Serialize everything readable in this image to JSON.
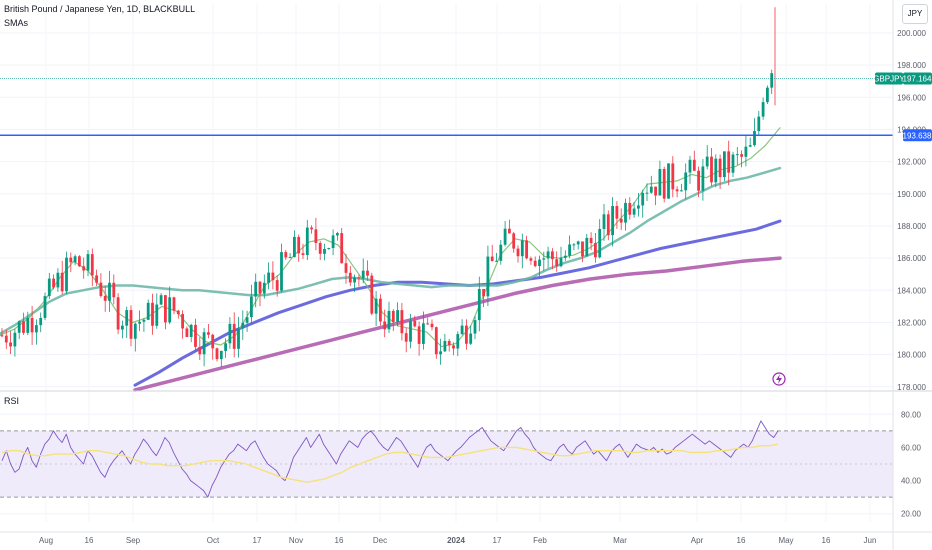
{
  "header": {
    "symbol_title": "British Pound / Japanese Yen, 1D, BLACKBULL",
    "indicator_main": "SMAs",
    "indicator_rsi": "RSI",
    "currency_unit": "JPY"
  },
  "price_tags": {
    "symbol": "GBPJPY",
    "last_price": "197.164",
    "hline_price": "193.638"
  },
  "colors": {
    "up": "#089981",
    "down": "#f23645",
    "sma_fast": "#7cbf6b",
    "sma_mid": "#6fb8a8",
    "sma_slow": "#5b5bdc",
    "sma_long": "#b15cae",
    "hline": "#2962ff",
    "last_tag": "#089981",
    "rsi": "#7e57c2",
    "rsi_ma": "#f5e27a",
    "rsi_band": "#f0ebfa",
    "lightning": "#9c27b0"
  },
  "chart_data": [
    {
      "type": "candlestick",
      "name": "GBPJPY daily",
      "y_ticks": [
        "178.000",
        "180.000",
        "182.000",
        "184.000",
        "186.000",
        "188.000",
        "190.000",
        "192.000",
        "194.000",
        "196.000",
        "198.000",
        "200.000"
      ],
      "ylim": [
        177.8,
        201.8
      ],
      "x_ticks": [
        "Aug",
        "16",
        "Sep",
        "Oct",
        "17",
        "Nov",
        "16",
        "Dec",
        "2024",
        "17",
        "Feb",
        "Mar",
        "Apr",
        "16",
        "May",
        "16",
        "Jun"
      ],
      "hline": 193.638,
      "last": 197.164,
      "series": [
        {
          "name": "SMA fast",
          "values": [
            181.2,
            181.6,
            182.3,
            183.3,
            184.7,
            185.8,
            185.2,
            184.0,
            182.6,
            182.0,
            182.3,
            183.0,
            182.7,
            181.6,
            180.8,
            180.6,
            181.2,
            182.7,
            184.3,
            185.0,
            186.2,
            187.0,
            187.2,
            186.8,
            185.5,
            184.2,
            182.6,
            181.8,
            181.6,
            181.4,
            180.5,
            180.7,
            181.8,
            184.0,
            186.2,
            187.2,
            187.0,
            186.1,
            186.0,
            186.2,
            186.6,
            187.2,
            188.3,
            189.3,
            190.6,
            190.7,
            190.8,
            191.2,
            191.0,
            191.5,
            191.7,
            192.2,
            193.0,
            194.1
          ]
        },
        {
          "name": "SMA mid",
          "values": [
            181.3,
            181.9,
            182.6,
            183.3,
            183.8,
            184.0,
            184.2,
            184.3,
            184.3,
            184.2,
            184.1,
            184.0,
            184.0,
            183.9,
            183.8,
            183.7,
            183.7,
            183.9,
            184.1,
            184.4,
            184.7,
            184.8,
            184.7,
            184.5,
            184.4,
            184.3,
            184.2,
            184.3,
            184.3,
            184.3,
            184.3,
            184.5,
            184.8,
            185.3,
            185.7,
            186.0,
            186.4,
            187.0,
            187.6,
            188.3,
            188.9,
            189.5,
            190.0,
            190.5,
            190.8,
            191.0,
            191.3,
            191.6
          ]
        },
        {
          "name": "SMA slow",
          "values": [
            178.1,
            178.9,
            179.8,
            180.6,
            181.4,
            182.0,
            182.6,
            183.1,
            183.6,
            184.0,
            184.3,
            184.5,
            184.5,
            184.4,
            184.3,
            184.4,
            184.6,
            184.8,
            185.1,
            185.4,
            185.8,
            186.2,
            186.6,
            186.9,
            187.2,
            187.5,
            187.8,
            188.3
          ]
        },
        {
          "name": "SMA long",
          "values": [
            177.8,
            178.4,
            179.0,
            179.6,
            180.2,
            180.8,
            181.4,
            182.0,
            182.6,
            183.2,
            183.8,
            184.3,
            184.7,
            185.0,
            185.2,
            185.5,
            185.8,
            186.0
          ]
        }
      ]
    },
    {
      "type": "line",
      "name": "RSI",
      "y_ticks": [
        "20.00",
        "40.00",
        "60.00",
        "80.00"
      ],
      "ylim": [
        15,
        85
      ],
      "bands": [
        30,
        70
      ],
      "series": [
        {
          "name": "RSI",
          "values": [
            52,
            58,
            50,
            45,
            47,
            55,
            60,
            52,
            48,
            56,
            62,
            65,
            70,
            66,
            63,
            68,
            60,
            56,
            53,
            50,
            58,
            55,
            50,
            45,
            42,
            48,
            52,
            55,
            58,
            54,
            50,
            56,
            60,
            65,
            62,
            58,
            55,
            60,
            66,
            63,
            57,
            52,
            47,
            44,
            40,
            38,
            36,
            34,
            30,
            37,
            42,
            48,
            52,
            56,
            58,
            62,
            60,
            58,
            62,
            64,
            59,
            54,
            50,
            48,
            46,
            42,
            40,
            46,
            54,
            58,
            62,
            66,
            60,
            64,
            68,
            62,
            58,
            54,
            50,
            56,
            60,
            64,
            62,
            60,
            65,
            68,
            70,
            67,
            63,
            60,
            58,
            62,
            66,
            64,
            60,
            56,
            52,
            48,
            55,
            60,
            62,
            58,
            56,
            54,
            52,
            55,
            58,
            60,
            63,
            66,
            68,
            70,
            72,
            68,
            64,
            62,
            60,
            58,
            62,
            66,
            70,
            72,
            68,
            65,
            60,
            57,
            55,
            53,
            52,
            56,
            60,
            62,
            58,
            56,
            60,
            62,
            64,
            60,
            56,
            58,
            55,
            52,
            57,
            60,
            62,
            58,
            54,
            58,
            62,
            60,
            59,
            58,
            60,
            57,
            59,
            56,
            57,
            60,
            62,
            64,
            66,
            68,
            66,
            64,
            62,
            64,
            62,
            60,
            58,
            56,
            54,
            58,
            60,
            62,
            60,
            64,
            70,
            76,
            72,
            68,
            66,
            70
          ]
        },
        {
          "name": "RSI MA",
          "values": [
            57,
            58,
            58,
            56,
            55,
            55,
            56,
            56,
            56,
            57,
            58,
            58,
            57,
            56,
            55,
            53,
            51,
            50,
            50,
            49,
            49,
            49,
            50,
            51,
            52,
            52,
            52,
            51,
            50,
            48,
            46,
            44,
            42,
            41,
            40,
            39,
            40,
            41,
            43,
            45,
            48,
            50,
            52,
            54,
            56,
            57,
            57,
            56,
            55,
            54,
            54,
            54,
            55,
            56,
            57,
            58,
            59,
            60,
            60,
            60,
            59,
            58,
            57,
            56,
            55,
            55,
            56,
            57,
            58,
            58,
            58,
            58,
            57,
            57,
            58,
            58,
            58,
            58,
            58,
            57,
            57,
            57,
            58,
            58,
            59,
            60,
            60,
            61,
            61,
            62
          ]
        }
      ]
    }
  ]
}
